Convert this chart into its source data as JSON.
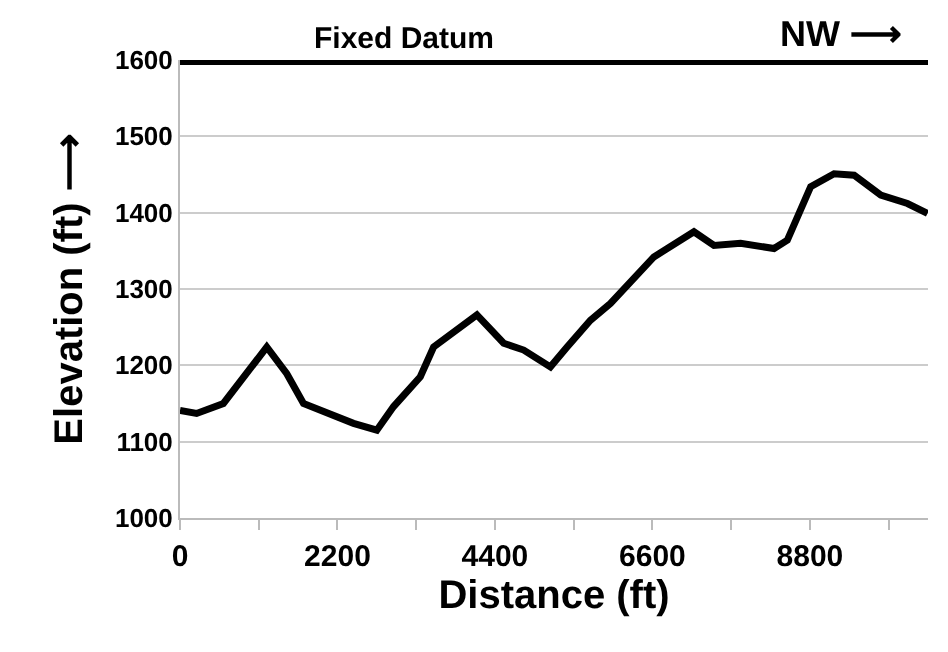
{
  "chart_data": {
    "type": "line",
    "xlabel": "Distance (ft)",
    "ylabel": "Elevation (ft) ⟶",
    "x": [
      0,
      232,
      606,
      1212,
      1492,
      1725,
      2424,
      2750,
      2984,
      3357,
      3543,
      4148,
      4522,
      4802,
      5175,
      5408,
      5734,
      6014,
      6620,
      7180,
      7460,
      7832,
      8299,
      8485,
      8811,
      9138,
      9418,
      9790,
      10163,
      10443
    ],
    "series": [
      {
        "color": "#000000",
        "values": [
          1141,
          1137,
          1150,
          1224,
          1189,
          1150,
          1124,
          1115,
          1146,
          1185,
          1224,
          1266,
          1229,
          1220,
          1198,
          1224,
          1259,
          1281,
          1342,
          1375,
          1357,
          1360,
          1353,
          1364,
          1434,
          1451,
          1449,
          1423,
          1412,
          1399
        ]
      }
    ],
    "xlim": [
      0,
      10450
    ],
    "xticks": [
      0,
      {
        "value": 1100,
        "label": null
      },
      2200,
      {
        "value": 3300,
        "label": null
      },
      4400,
      {
        "value": 5500,
        "label": null
      },
      6600,
      {
        "value": 7700,
        "label": null
      },
      8800,
      {
        "value": 9900,
        "label": null
      }
    ],
    "ylim": [
      1000,
      1600
    ],
    "yticks": [
      1000,
      1100,
      1200,
      1300,
      1400,
      1500,
      1600
    ],
    "grid": "y",
    "marker": "none",
    "line_style": "solid",
    "ref_lines": [
      {
        "axis": "y",
        "value": 1600,
        "label": "Fixed Datum",
        "color": "#000000"
      }
    ],
    "annotations": [
      "NW ⟶"
    ]
  }
}
